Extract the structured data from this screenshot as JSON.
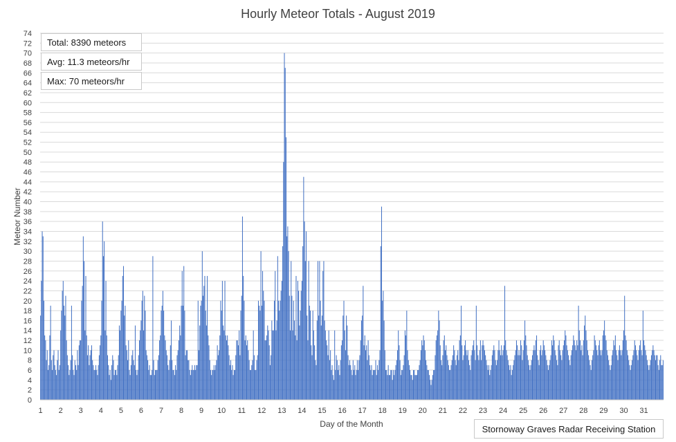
{
  "stats": {
    "total": "Total: 8390 meteors",
    "avg": "Avg: 11.3 meteors/hr",
    "max": "Max: 70 meteors/hr"
  },
  "station": "Stornoway Graves Radar Receiving Station",
  "colors": {
    "bar": "#4472c4",
    "grid": "#d9d9d9",
    "axis": "#bfbfbf"
  },
  "chart_data": {
    "type": "bar",
    "title": "Hourly Meteor Totals - August 2019",
    "xlabel": "Day of the Month",
    "ylabel": "Meteor Number",
    "ylim": [
      0,
      74
    ],
    "y_ticks": [
      0,
      2,
      4,
      6,
      8,
      10,
      12,
      14,
      16,
      18,
      20,
      22,
      24,
      26,
      28,
      30,
      32,
      34,
      36,
      38,
      40,
      42,
      44,
      46,
      48,
      50,
      52,
      54,
      56,
      58,
      60,
      62,
      64,
      66,
      68,
      70,
      72,
      74
    ],
    "x_ticks": [
      "1",
      "2",
      "3",
      "4",
      "5",
      "6",
      "7",
      "8",
      "9",
      "10",
      "11",
      "12",
      "13",
      "14",
      "15",
      "16",
      "17",
      "18",
      "19",
      "20",
      "21",
      "22",
      "23",
      "24",
      "25",
      "26",
      "27",
      "28",
      "29",
      "30",
      "31"
    ],
    "hours_per_day": 24,
    "grid": true,
    "series": [
      {
        "values": [
          17,
          24,
          34,
          33,
          20,
          13,
          12,
          8,
          10,
          6,
          7,
          13,
          19,
          8,
          6,
          9,
          10,
          7,
          6,
          5,
          8,
          10,
          6,
          7,
          14,
          18,
          22,
          24,
          19,
          17,
          21,
          12,
          9,
          7,
          5,
          6,
          8,
          19,
          9,
          6,
          5,
          8,
          7,
          6,
          10,
          7,
          11,
          12,
          12,
          20,
          23,
          33,
          28,
          14,
          25,
          13,
          9,
          11,
          7,
          9,
          10,
          11,
          8,
          7,
          6,
          6,
          7,
          6,
          5,
          7,
          9,
          11,
          13,
          20,
          36,
          29,
          32,
          14,
          24,
          13,
          9,
          7,
          5,
          6,
          4,
          7,
          9,
          8,
          5,
          6,
          6,
          5,
          7,
          9,
          15,
          14,
          18,
          20,
          25,
          27,
          17,
          19,
          11,
          10,
          8,
          12,
          6,
          5,
          7,
          9,
          10,
          8,
          7,
          15,
          6,
          5,
          6,
          9,
          12,
          14,
          16,
          20,
          22,
          14,
          21,
          18,
          10,
          9,
          8,
          6,
          7,
          5,
          5,
          6,
          29,
          8,
          5,
          6,
          6,
          6,
          8,
          9,
          12,
          13,
          18,
          19,
          22,
          18,
          13,
          12,
          10,
          9,
          7,
          6,
          8,
          11,
          16,
          8,
          6,
          6,
          5,
          7,
          6,
          9,
          10,
          12,
          15,
          13,
          19,
          26,
          19,
          27,
          18,
          9,
          10,
          10,
          8,
          8,
          6,
          5,
          6,
          7,
          6,
          6,
          7,
          6,
          7,
          7,
          20,
          10,
          15,
          19,
          20,
          30,
          21,
          23,
          25,
          18,
          15,
          25,
          13,
          11,
          8,
          6,
          5,
          6,
          6,
          7,
          6,
          7,
          8,
          11,
          9,
          10,
          13,
          20,
          18,
          24,
          15,
          14,
          24,
          13,
          12,
          13,
          11,
          9,
          7,
          8,
          6,
          7,
          5,
          6,
          6,
          9,
          12,
          12,
          11,
          14,
          9,
          18,
          21,
          37,
          25,
          20,
          12,
          13,
          11,
          12,
          10,
          8,
          6,
          6,
          7,
          8,
          14,
          9,
          6,
          6,
          8,
          9,
          20,
          19,
          18,
          30,
          19,
          26,
          22,
          20,
          12,
          12,
          13,
          15,
          14,
          11,
          7,
          9,
          16,
          14,
          14,
          20,
          26,
          14,
          16,
          29,
          20,
          18,
          20,
          22,
          24,
          31,
          48,
          70,
          67,
          53,
          33,
          35,
          30,
          21,
          14,
          28,
          21,
          14,
          20,
          16,
          13,
          25,
          12,
          24,
          22,
          15,
          18,
          22,
          24,
          31,
          45,
          36,
          28,
          34,
          17,
          12,
          28,
          19,
          18,
          11,
          9,
          18,
          14,
          11,
          8,
          7,
          16,
          28,
          17,
          28,
          20,
          15,
          17,
          26,
          28,
          16,
          14,
          12,
          11,
          9,
          14,
          8,
          10,
          6,
          7,
          5,
          4,
          14,
          6,
          9,
          8,
          6,
          7,
          5,
          8,
          11,
          12,
          17,
          20,
          14,
          10,
          17,
          15,
          9,
          7,
          8,
          7,
          6,
          5,
          8,
          6,
          7,
          5,
          6,
          8,
          6,
          8,
          9,
          12,
          16,
          17,
          23,
          11,
          13,
          10,
          11,
          8,
          12,
          9,
          7,
          6,
          7,
          5,
          6,
          6,
          6,
          8,
          5,
          7,
          6,
          8,
          10,
          31,
          39,
          20,
          22,
          16,
          10,
          6,
          6,
          5,
          7,
          5,
          5,
          6,
          6,
          4,
          6,
          5,
          6,
          7,
          8,
          10,
          14,
          11,
          8,
          5,
          6,
          6,
          7,
          9,
          14,
          13,
          18,
          10,
          8,
          7,
          6,
          5,
          5,
          4,
          6,
          6,
          5,
          5,
          5,
          6,
          6,
          7,
          8,
          10,
          12,
          11,
          13,
          12,
          10,
          8,
          7,
          6,
          6,
          5,
          4,
          3,
          4,
          5,
          6,
          6,
          9,
          12,
          13,
          14,
          18,
          16,
          11,
          8,
          7,
          9,
          12,
          13,
          10,
          11,
          9,
          8,
          7,
          6,
          6,
          7,
          8,
          9,
          11,
          10,
          8,
          7,
          9,
          10,
          8,
          12,
          13,
          19,
          11,
          8,
          9,
          11,
          12,
          10,
          9,
          10,
          8,
          7,
          6,
          9,
          10,
          11,
          12,
          10,
          8,
          19,
          11,
          9,
          8,
          10,
          12,
          8,
          11,
          12,
          11,
          10,
          9,
          8,
          7,
          6,
          7,
          5,
          6,
          7,
          9,
          10,
          11,
          10,
          8,
          7,
          8,
          10,
          12,
          10,
          9,
          11,
          9,
          10,
          11,
          23,
          12,
          10,
          9,
          8,
          7,
          6,
          7,
          5,
          6,
          7,
          8,
          9,
          10,
          12,
          11,
          9,
          10,
          9,
          12,
          11,
          8,
          10,
          12,
          16,
          13,
          11,
          9,
          8,
          7,
          6,
          7,
          8,
          9,
          10,
          11,
          10,
          12,
          13,
          9,
          8,
          7,
          10,
          11,
          9,
          10,
          12,
          11,
          10,
          9,
          8,
          7,
          6,
          7,
          8,
          9,
          12,
          11,
          13,
          12,
          10,
          9,
          8,
          7,
          11,
          12,
          10,
          9,
          8,
          10,
          11,
          12,
          14,
          13,
          11,
          10,
          9,
          8,
          7,
          9,
          10,
          11,
          13,
          12,
          11,
          10,
          12,
          11,
          19,
          14,
          12,
          10,
          11,
          9,
          12,
          15,
          17,
          14,
          12,
          10,
          9,
          8,
          7,
          6,
          8,
          9,
          10,
          13,
          12,
          11,
          10,
          9,
          11,
          12,
          10,
          9,
          10,
          13,
          14,
          16,
          13,
          12,
          10,
          9,
          8,
          7,
          6,
          7,
          9,
          10,
          12,
          11,
          13,
          10,
          9,
          8,
          10,
          11,
          10,
          9,
          10,
          12,
          14,
          21,
          13,
          12,
          10,
          9,
          8,
          7,
          6,
          7,
          8,
          9,
          10,
          12,
          11,
          10,
          9,
          8,
          10,
          11,
          12,
          10,
          9,
          18,
          12,
          11,
          10,
          9,
          8,
          7,
          6,
          7,
          8,
          9,
          10,
          11,
          10,
          9,
          8,
          9,
          9,
          7,
          6,
          8,
          9,
          7,
          7,
          8
        ]
      }
    ]
  }
}
